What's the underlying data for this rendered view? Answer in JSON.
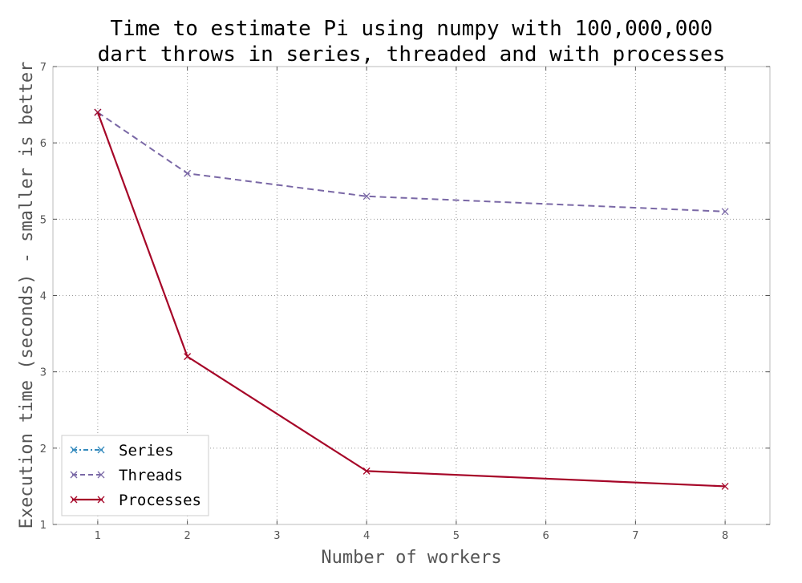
{
  "chart_data": {
    "type": "line",
    "title_lines": [
      "Time to estimate Pi using numpy with 100,000,000",
      "dart throws in series, threaded and with processes"
    ],
    "xlabel": "Number of workers",
    "ylabel": "Execution time (seconds) - smaller is better",
    "xlim": [
      0.5,
      8.5
    ],
    "ylim": [
      1,
      7
    ],
    "xticks": [
      1,
      2,
      3,
      4,
      5,
      6,
      7,
      8
    ],
    "yticks": [
      1,
      2,
      3,
      4,
      5,
      6,
      7
    ],
    "grid": true,
    "legend_position": "lower-left",
    "series": [
      {
        "name": "Series",
        "color": "#348abd",
        "style": "dashdot",
        "marker": "x",
        "x": [
          1
        ],
        "y": [
          6.4
        ]
      },
      {
        "name": "Threads",
        "color": "#7a68a6",
        "style": "dashed",
        "marker": "x",
        "x": [
          1,
          2,
          4,
          8
        ],
        "y": [
          6.4,
          5.6,
          5.3,
          5.1
        ]
      },
      {
        "name": "Processes",
        "color": "#a60628",
        "style": "solid",
        "marker": "x",
        "x": [
          1,
          2,
          4,
          8
        ],
        "y": [
          6.4,
          3.2,
          1.7,
          1.5
        ]
      }
    ]
  }
}
